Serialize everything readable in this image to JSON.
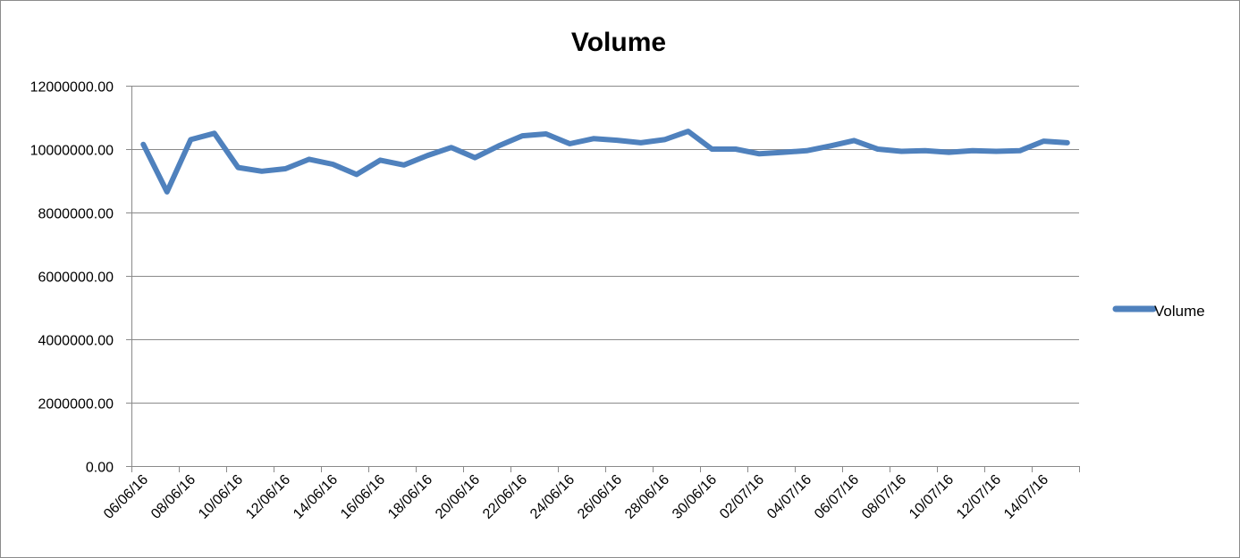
{
  "chart_data": {
    "type": "line",
    "title": "Volume",
    "xlabel": "",
    "ylabel": "",
    "ylim": [
      0,
      12000000
    ],
    "grid": true,
    "legend_position": "right",
    "y_ticks": [
      "0.00",
      "2000000.00",
      "4000000.00",
      "6000000.00",
      "8000000.00",
      "10000000.00",
      "12000000.00"
    ],
    "x_tick_labels": [
      "06/06/16",
      "08/06/16",
      "10/06/16",
      "12/06/16",
      "14/06/16",
      "16/06/16",
      "18/06/16",
      "20/06/16",
      "22/06/16",
      "24/06/16",
      "26/06/16",
      "28/06/16",
      "30/06/16",
      "02/07/16",
      "04/07/16",
      "06/07/16",
      "08/07/16",
      "10/07/16",
      "12/07/16",
      "14/07/16"
    ],
    "series": [
      {
        "name": "Volume",
        "color": "#4f81bd",
        "x": [
          "06/06/16",
          "07/06/16",
          "08/06/16",
          "09/06/16",
          "10/06/16",
          "11/06/16",
          "12/06/16",
          "13/06/16",
          "14/06/16",
          "15/06/16",
          "16/06/16",
          "17/06/16",
          "18/06/16",
          "19/06/16",
          "20/06/16",
          "21/06/16",
          "22/06/16",
          "23/06/16",
          "24/06/16",
          "25/06/16",
          "26/06/16",
          "27/06/16",
          "28/06/16",
          "29/06/16",
          "30/06/16",
          "01/07/16",
          "02/07/16",
          "03/07/16",
          "04/07/16",
          "05/07/16",
          "06/07/16",
          "07/07/16",
          "08/07/16",
          "09/07/16",
          "10/07/16",
          "11/07/16",
          "12/07/16",
          "13/07/16",
          "14/07/16",
          "15/07/16"
        ],
        "values": [
          10150000,
          8650000,
          10300000,
          10500000,
          9420000,
          9300000,
          9380000,
          9680000,
          9520000,
          9200000,
          9650000,
          9500000,
          9800000,
          10050000,
          9730000,
          10100000,
          10420000,
          10480000,
          10170000,
          10330000,
          10280000,
          10200000,
          10300000,
          10560000,
          10000000,
          10000000,
          9850000,
          9900000,
          9950000,
          10100000,
          10270000,
          10000000,
          9930000,
          9950000,
          9900000,
          9950000,
          9930000,
          9950000,
          10250000,
          10200000
        ]
      }
    ]
  }
}
